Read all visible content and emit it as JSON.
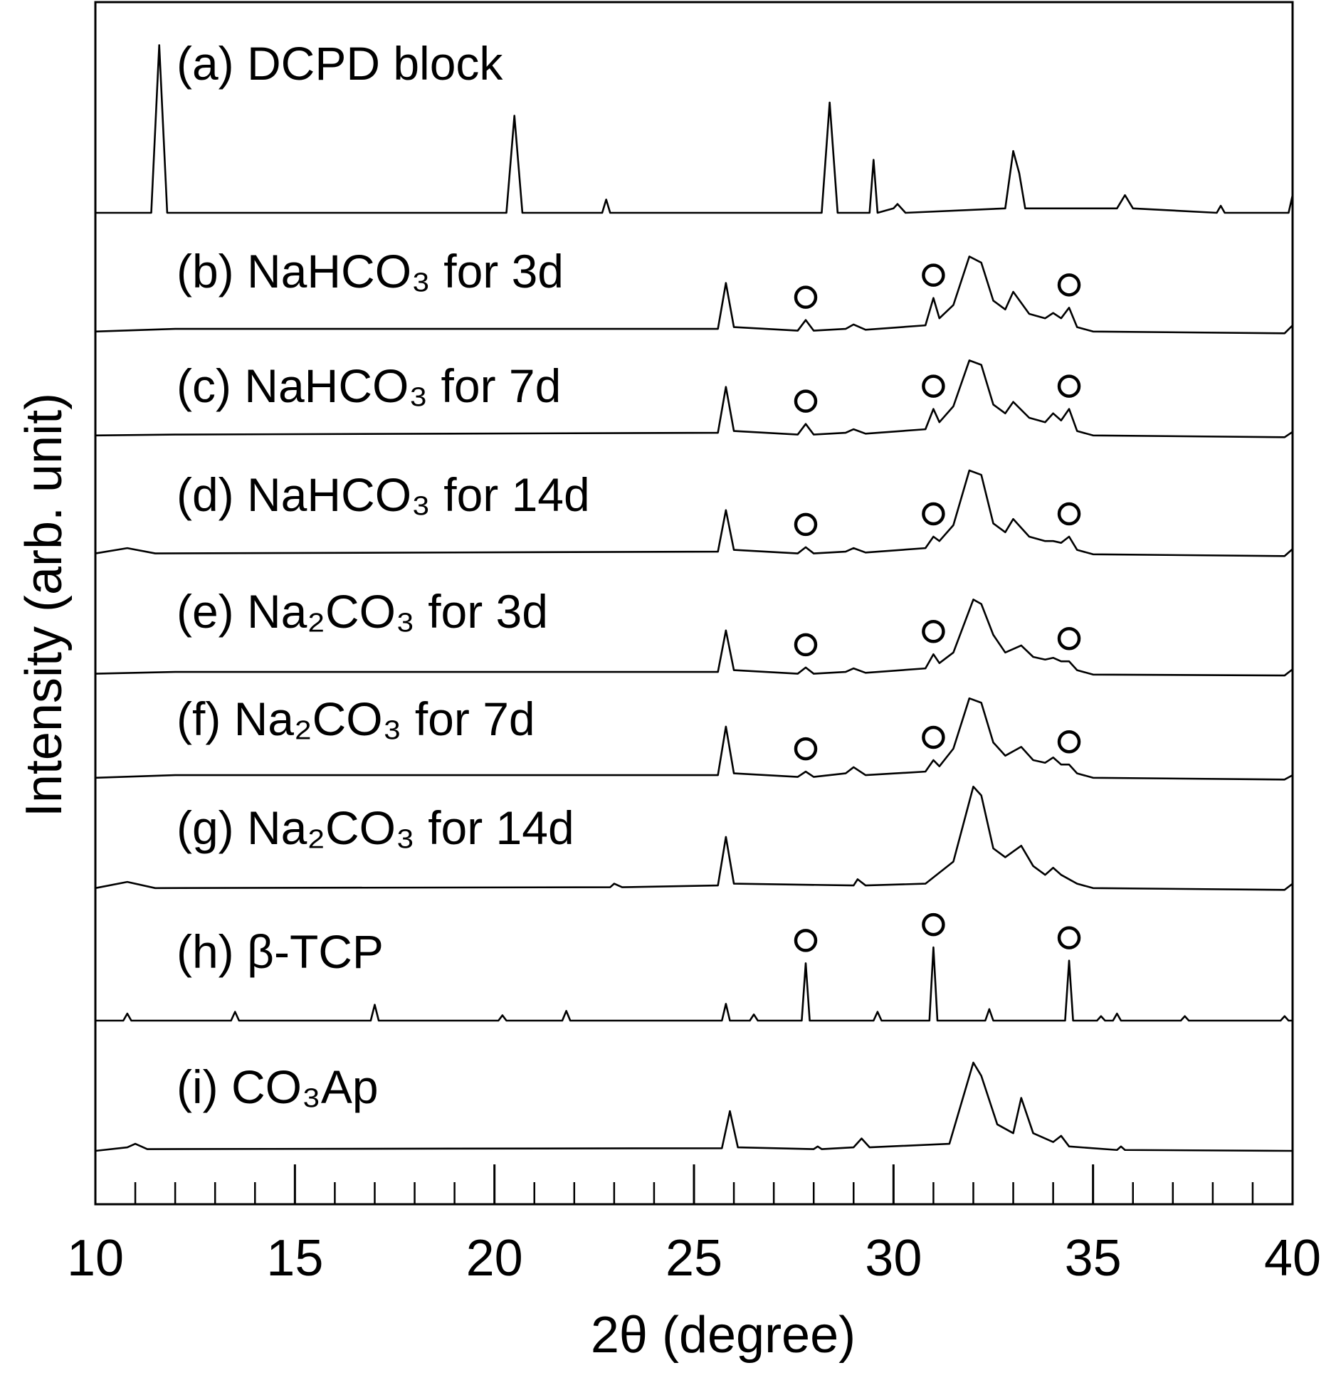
{
  "chart_data": {
    "type": "line",
    "xlabel": "2θ (degree)",
    "ylabel": "Intensity (arb. unit)",
    "xlim": [
      10,
      40
    ],
    "xticks": [
      10,
      15,
      20,
      25,
      30,
      35,
      40
    ],
    "xticks_minor": [
      11,
      12,
      13,
      14,
      16,
      17,
      18,
      19,
      21,
      22,
      23,
      24,
      26,
      27,
      28,
      29,
      31,
      32,
      33,
      34,
      36,
      37,
      38,
      39
    ],
    "color": "#000000",
    "series": [
      {
        "name": "(a) DCPD block",
        "x": [
          10,
          11.4,
          11.6,
          11.8,
          12.5,
          20.3,
          20.5,
          20.7,
          22.7,
          22.8,
          22.9,
          28.2,
          28.4,
          28.6,
          29.4,
          29.5,
          29.6,
          30.0,
          30.1,
          30.3,
          32.8,
          33.0,
          33.15,
          33.3,
          35.6,
          35.8,
          36.0,
          38.1,
          38.2,
          38.3,
          39.9,
          40
        ],
        "values": [
          0,
          0,
          19,
          0,
          0,
          0,
          11,
          0,
          0,
          1.5,
          0,
          0,
          12.5,
          0,
          0,
          6,
          0,
          0.5,
          1,
          0,
          0.5,
          7,
          4.5,
          0.5,
          0.5,
          2,
          0.5,
          0,
          0.8,
          0,
          0,
          2
        ]
      },
      {
        "name": "(b) NaHCO₃ for 3d",
        "marker_x": [
          27.8,
          31.0,
          34.4
        ],
        "x": [
          10,
          12,
          25.6,
          25.8,
          26.0,
          27.6,
          27.8,
          28.0,
          28.8,
          29.0,
          29.3,
          30.8,
          31.0,
          31.15,
          31.5,
          31.9,
          32.2,
          32.5,
          32.8,
          33.0,
          33.4,
          33.8,
          34.0,
          34.2,
          34.4,
          34.6,
          35,
          39.8,
          40
        ],
        "values": [
          0.5,
          0.8,
          0.8,
          6,
          1,
          0.6,
          1.8,
          0.6,
          0.8,
          1.3,
          0.7,
          1.2,
          4.3,
          2,
          3.5,
          9,
          8.3,
          4,
          3,
          5,
          2.5,
          2,
          2.6,
          2,
          3.2,
          1,
          0.5,
          0.3,
          1.2
        ]
      },
      {
        "name": "(c) NaHCO₃ for 7d",
        "marker_x": [
          27.8,
          31.0,
          34.4
        ],
        "x": [
          10,
          12,
          25.6,
          25.8,
          26.0,
          27.6,
          27.8,
          28.0,
          28.8,
          29.0,
          29.3,
          30.8,
          31.0,
          31.15,
          31.5,
          31.9,
          32.2,
          32.5,
          32.8,
          33.0,
          33.4,
          33.8,
          34.0,
          34.2,
          34.4,
          34.6,
          35,
          39.8,
          40
        ],
        "values": [
          0.5,
          0.6,
          0.8,
          6,
          1,
          0.6,
          1.8,
          0.6,
          0.8,
          1.2,
          0.7,
          1.2,
          3.5,
          2,
          3.8,
          9,
          8.5,
          4,
          3,
          4.3,
          2.5,
          2,
          3,
          2.2,
          3.5,
          1,
          0.5,
          0.3,
          0.9
        ]
      },
      {
        "name": "(d) NaHCO₃ for 14d",
        "marker_x": [
          27.8,
          31.0,
          34.4
        ],
        "x": [
          10,
          10.8,
          11.5,
          25.6,
          25.8,
          26.0,
          27.6,
          27.8,
          28.0,
          28.8,
          29.0,
          29.3,
          30.8,
          31.0,
          31.15,
          31.5,
          31.9,
          32.2,
          32.5,
          32.8,
          33.0,
          33.4,
          33.8,
          34.0,
          34.2,
          34.4,
          34.6,
          35,
          39.8,
          40
        ],
        "values": [
          0.6,
          1.2,
          0.6,
          0.8,
          5.5,
          1,
          0.6,
          1.3,
          0.6,
          0.8,
          1.2,
          0.7,
          1.2,
          2.5,
          2,
          3.8,
          10,
          9.5,
          4,
          3,
          4.5,
          2.5,
          2,
          2,
          1.8,
          2.5,
          1,
          0.5,
          0.3,
          1.1
        ]
      },
      {
        "name": "(e) Na₂CO₃ for 3d",
        "marker_x": [
          27.8,
          31.0,
          34.4
        ],
        "x": [
          10,
          12,
          25.6,
          25.8,
          26.0,
          27.6,
          27.8,
          28.0,
          28.8,
          29.0,
          29.3,
          30.8,
          31.0,
          31.15,
          31.5,
          32.0,
          32.2,
          32.5,
          32.8,
          33.2,
          33.5,
          33.8,
          34.0,
          34.2,
          34.4,
          34.6,
          35,
          39.8,
          40
        ],
        "values": [
          0.6,
          0.8,
          0.8,
          5.5,
          1,
          0.6,
          1.3,
          0.6,
          0.8,
          1.2,
          0.7,
          1.2,
          2.8,
          1.8,
          3,
          9,
          8.5,
          5,
          3,
          3.8,
          2.5,
          2.2,
          2.4,
          2,
          2,
          1,
          0.5,
          0.4,
          1.1
        ]
      },
      {
        "name": "(f) Na₂CO₃ for 7d",
        "marker_x": [
          27.8,
          31.0,
          34.4
        ],
        "x": [
          10,
          12,
          25.6,
          25.8,
          26.0,
          27.6,
          27.8,
          28.0,
          28.8,
          29.0,
          29.3,
          30.8,
          31.0,
          31.15,
          31.5,
          31.9,
          32.2,
          32.5,
          32.8,
          33.2,
          33.5,
          33.8,
          34.0,
          34.2,
          34.4,
          34.6,
          35,
          39.8,
          40
        ],
        "values": [
          0.5,
          0.8,
          0.8,
          6.3,
          1,
          0.6,
          1.2,
          0.6,
          1,
          1.7,
          0.8,
          1.2,
          2.5,
          1.8,
          3.8,
          9.5,
          9,
          4.5,
          3,
          4,
          2.5,
          2.2,
          2.8,
          2,
          2,
          1,
          0.5,
          0.3,
          0.8
        ]
      },
      {
        "name": "(g) Na₂CO₃ for 14d",
        "x": [
          10,
          10.8,
          11.5,
          22.9,
          23.0,
          23.2,
          25.6,
          25.8,
          26.0,
          29.0,
          29.1,
          29.3,
          30.8,
          31.5,
          32.0,
          32.2,
          32.5,
          32.8,
          33.2,
          33.5,
          33.8,
          34.0,
          34.2,
          34.6,
          35,
          39.8,
          40
        ],
        "values": [
          0.5,
          1.2,
          0.5,
          0.6,
          1,
          0.6,
          0.8,
          6.3,
          1,
          0.8,
          1.5,
          0.8,
          1,
          3.5,
          12,
          11,
          5,
          4,
          5.3,
          3,
          2,
          2.8,
          2,
          1,
          0.5,
          0.3,
          1
        ]
      },
      {
        "name": "(h) β-TCP",
        "marker_x": [
          27.8,
          31.0,
          34.4
        ],
        "x": [
          10,
          10.7,
          10.8,
          10.9,
          13.4,
          13.5,
          13.6,
          16.9,
          17.0,
          17.1,
          20.1,
          20.2,
          20.3,
          21.7,
          21.8,
          21.9,
          25.7,
          25.8,
          25.9,
          26.4,
          26.5,
          26.6,
          27.7,
          27.8,
          27.9,
          29.5,
          29.6,
          29.7,
          30.9,
          31.0,
          31.1,
          32.3,
          32.4,
          32.5,
          34.3,
          34.4,
          34.5,
          35.1,
          35.2,
          35.3,
          35.5,
          35.6,
          35.7,
          37.2,
          37.3,
          37.4,
          39.7,
          39.8,
          39.9,
          40
        ],
        "values": [
          0,
          0,
          0.8,
          0,
          0,
          1,
          0,
          0,
          1.8,
          0,
          0,
          0.6,
          0,
          0,
          1.1,
          0,
          0,
          1.9,
          0,
          0,
          0.7,
          0,
          0,
          6.5,
          0,
          0,
          1,
          0,
          0,
          8.3,
          0,
          0,
          1.3,
          0,
          0,
          6.8,
          0,
          0,
          0.5,
          0,
          0,
          0.8,
          0,
          0,
          0.5,
          0,
          0,
          0.5,
          0,
          0
        ]
      },
      {
        "name": "(i) CO₃Ap",
        "x": [
          10,
          10.8,
          11.0,
          11.3,
          25.7,
          25.9,
          26.1,
          28.0,
          28.1,
          28.2,
          29.0,
          29.2,
          29.4,
          31.4,
          32.0,
          32.2,
          32.6,
          33.0,
          33.2,
          33.5,
          34.0,
          34.2,
          34.4,
          35.6,
          35.7,
          35.8,
          40
        ],
        "values": [
          0,
          0.4,
          0.8,
          0.2,
          0.3,
          4.5,
          0.4,
          0.2,
          0.5,
          0.2,
          0.4,
          1.4,
          0.4,
          0.8,
          10,
          8.5,
          3,
          2,
          6,
          2,
          1,
          1.7,
          0.5,
          0.1,
          0.5,
          0.1,
          0
        ]
      }
    ]
  }
}
